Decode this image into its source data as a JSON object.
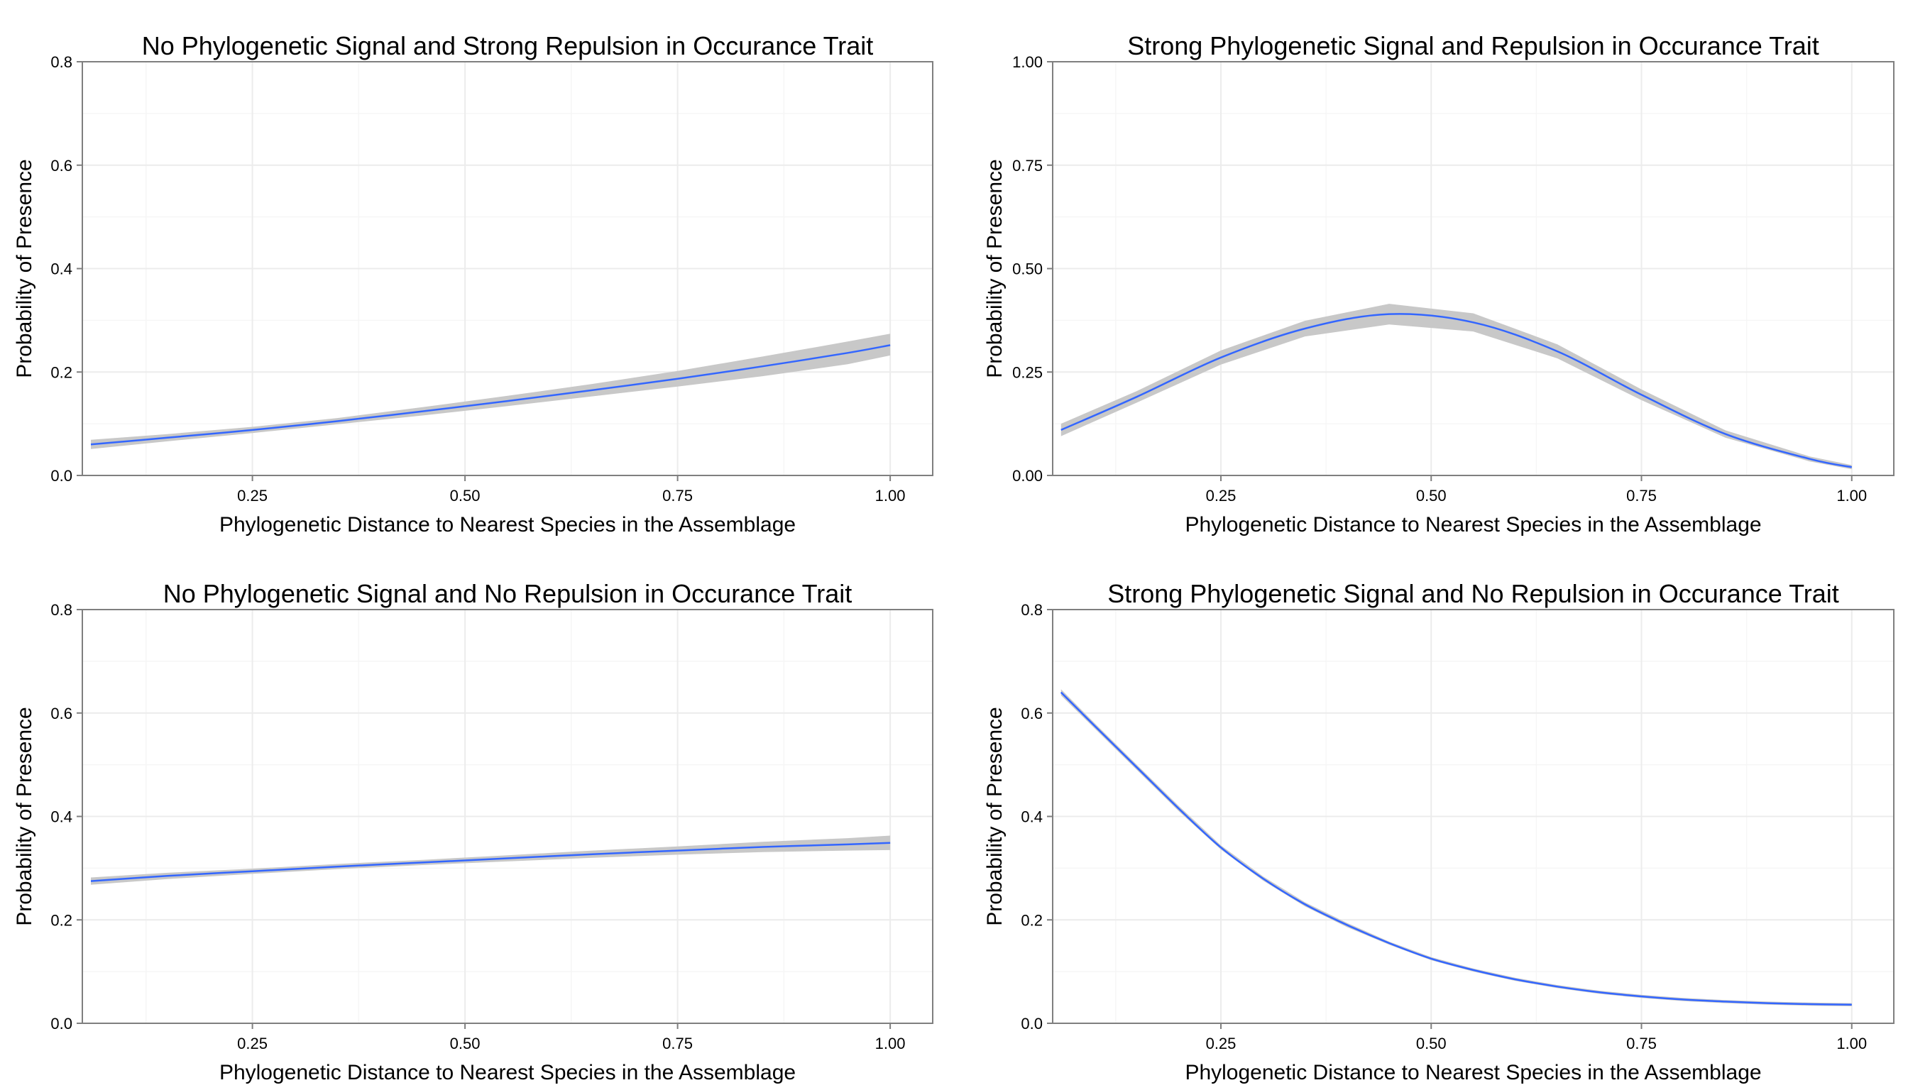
{
  "colors": {
    "line": "#3366ff",
    "band": "#c8c8c8",
    "grid": "#ececec",
    "frame": "#7f7f7f"
  },
  "chart_data": [
    {
      "type": "line",
      "title": "No Phylogenetic Signal and Strong Repulsion in Occurance Trait",
      "xlabel": "Phylogenetic Distance to Nearest Species in the Assemblage",
      "ylabel": "Probability of Presence",
      "xlim": [
        0.05,
        1.05
      ],
      "ylim": [
        0,
        0.8
      ],
      "xticks": [
        0.25,
        0.5,
        0.75,
        1.0
      ],
      "xtick_labels": [
        "0.25",
        "0.50",
        "0.75",
        "1.00"
      ],
      "yticks": [
        0,
        0.2,
        0.4,
        0.6,
        0.8
      ],
      "ytick_labels": [
        "0.0",
        "0.2",
        "0.4",
        "0.6",
        "0.8"
      ],
      "grid": true,
      "series": [
        {
          "x": [
            0.06,
            0.15,
            0.25,
            0.35,
            0.45,
            0.55,
            0.65,
            0.75,
            0.85,
            0.95,
            1.0
          ],
          "y": [
            0.06,
            0.073,
            0.088,
            0.105,
            0.124,
            0.144,
            0.165,
            0.187,
            0.211,
            0.237,
            0.252
          ],
          "lower": [
            0.051,
            0.066,
            0.082,
            0.099,
            0.116,
            0.134,
            0.153,
            0.172,
            0.192,
            0.215,
            0.232
          ],
          "upper": [
            0.069,
            0.08,
            0.094,
            0.111,
            0.132,
            0.154,
            0.177,
            0.202,
            0.23,
            0.259,
            0.274
          ]
        }
      ]
    },
    {
      "type": "line",
      "title": "Strong Phylogenetic Signal and Repulsion in Occurance Trait",
      "xlabel": "Phylogenetic Distance to Nearest Species in the Assemblage",
      "ylabel": "Probability of Presence",
      "xlim": [
        0.05,
        1.05
      ],
      "ylim": [
        0,
        1.0
      ],
      "xticks": [
        0.25,
        0.5,
        0.75,
        1.0
      ],
      "xtick_labels": [
        "0.25",
        "0.50",
        "0.75",
        "1.00"
      ],
      "yticks": [
        0,
        0.25,
        0.5,
        0.75,
        1.0
      ],
      "ytick_labels": [
        "0.00",
        "0.25",
        "0.50",
        "0.75",
        "1.00"
      ],
      "grid": true,
      "series": [
        {
          "x": [
            0.06,
            0.15,
            0.25,
            0.35,
            0.45,
            0.55,
            0.65,
            0.75,
            0.85,
            0.95,
            1.0
          ],
          "y": [
            0.11,
            0.19,
            0.285,
            0.355,
            0.39,
            0.37,
            0.3,
            0.195,
            0.1,
            0.04,
            0.02
          ],
          "lower": [
            0.095,
            0.176,
            0.268,
            0.336,
            0.365,
            0.348,
            0.283,
            0.182,
            0.091,
            0.034,
            0.015
          ],
          "upper": [
            0.125,
            0.204,
            0.302,
            0.374,
            0.415,
            0.392,
            0.317,
            0.208,
            0.109,
            0.046,
            0.025
          ]
        }
      ]
    },
    {
      "type": "line",
      "title": "No Phylogenetic Signal and No Repulsion in Occurance Trait",
      "xlabel": "Phylogenetic Distance to Nearest Species in the Assemblage",
      "ylabel": "Probability of Presence",
      "xlim": [
        0.05,
        1.05
      ],
      "ylim": [
        0,
        0.8
      ],
      "xticks": [
        0.25,
        0.5,
        0.75,
        1.0
      ],
      "xtick_labels": [
        "0.25",
        "0.50",
        "0.75",
        "1.00"
      ],
      "yticks": [
        0,
        0.2,
        0.4,
        0.6,
        0.8
      ],
      "ytick_labels": [
        "0.0",
        "0.2",
        "0.4",
        "0.6",
        "0.8"
      ],
      "grid": true,
      "series": [
        {
          "x": [
            0.06,
            0.15,
            0.25,
            0.35,
            0.45,
            0.55,
            0.65,
            0.75,
            0.85,
            0.95,
            1.0
          ],
          "y": [
            0.275,
            0.285,
            0.294,
            0.303,
            0.311,
            0.319,
            0.327,
            0.334,
            0.341,
            0.346,
            0.349
          ],
          "lower": [
            0.268,
            0.279,
            0.289,
            0.298,
            0.306,
            0.313,
            0.32,
            0.326,
            0.331,
            0.334,
            0.335
          ],
          "upper": [
            0.282,
            0.291,
            0.299,
            0.308,
            0.316,
            0.325,
            0.334,
            0.342,
            0.351,
            0.358,
            0.363
          ]
        }
      ]
    },
    {
      "type": "line",
      "title": "Strong Phylogenetic Signal and No Repulsion in Occurance Trait",
      "xlabel": "Phylogenetic Distance to Nearest Species in the Assemblage",
      "ylabel": "Probability of Presence",
      "xlim": [
        0.05,
        1.05
      ],
      "ylim": [
        0,
        0.8
      ],
      "xticks": [
        0.25,
        0.5,
        0.75,
        1.0
      ],
      "xtick_labels": [
        "0.25",
        "0.50",
        "0.75",
        "1.00"
      ],
      "yticks": [
        0,
        0.2,
        0.4,
        0.6,
        0.8
      ],
      "ytick_labels": [
        "0.0",
        "0.2",
        "0.4",
        "0.6",
        "0.8"
      ],
      "grid": true,
      "series": [
        {
          "x": [
            0.06,
            0.1,
            0.15,
            0.2,
            0.25,
            0.3,
            0.35,
            0.4,
            0.45,
            0.5,
            0.55,
            0.6,
            0.65,
            0.7,
            0.75,
            0.8,
            0.85,
            0.9,
            0.95,
            1.0
          ],
          "y": [
            0.64,
            0.575,
            0.495,
            0.415,
            0.34,
            0.28,
            0.23,
            0.19,
            0.155,
            0.125,
            0.103,
            0.085,
            0.071,
            0.06,
            0.052,
            0.046,
            0.042,
            0.039,
            0.037,
            0.036
          ],
          "lower": [
            0.634,
            0.57,
            0.49,
            0.41,
            0.336,
            0.276,
            0.226,
            0.186,
            0.152,
            0.122,
            0.1,
            0.082,
            0.068,
            0.057,
            0.049,
            0.043,
            0.039,
            0.036,
            0.034,
            0.033
          ],
          "upper": [
            0.646,
            0.58,
            0.5,
            0.42,
            0.344,
            0.284,
            0.234,
            0.194,
            0.158,
            0.128,
            0.106,
            0.088,
            0.074,
            0.063,
            0.055,
            0.049,
            0.045,
            0.042,
            0.04,
            0.039
          ]
        }
      ]
    }
  ]
}
